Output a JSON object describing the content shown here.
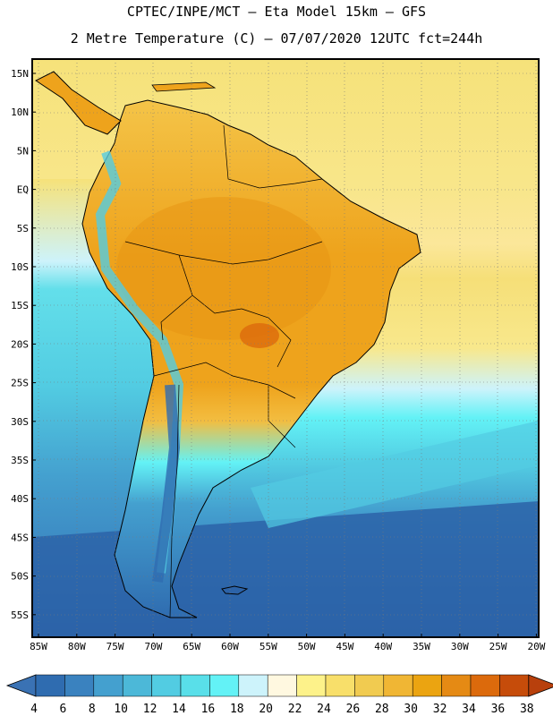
{
  "title_line1": "CPTEC/INPE/MCT –  Eta Model 15km – GFS",
  "title_line2": "2 Metre Temperature (C) – 07/07/2020 12UTC fct=244h",
  "lat_labels": [
    "15N",
    "10N",
    "5N",
    "EQ",
    "5S",
    "10S",
    "15S",
    "20S",
    "25S",
    "30S",
    "35S",
    "40S",
    "45S",
    "50S",
    "55S"
  ],
  "lon_labels": [
    "85W",
    "80W",
    "75W",
    "70W",
    "65W",
    "60W",
    "55W",
    "50W",
    "45W",
    "40W",
    "35W",
    "30W",
    "25W",
    "20W"
  ],
  "colorbar": {
    "values": [
      "4",
      "6",
      "8",
      "10",
      "12",
      "14",
      "16",
      "18",
      "20",
      "22",
      "24",
      "26",
      "28",
      "30",
      "32",
      "34",
      "36",
      "38"
    ],
    "low_color": "#3a72b4",
    "high_color": "#b8400c",
    "colors": [
      "#2f6cb0",
      "#3a82bf",
      "#44a0cf",
      "#4cb8d8",
      "#52cce2",
      "#59dfe9",
      "#63f2f6",
      "#cdf3fb",
      "#fff8e0",
      "#fdf28a",
      "#f8df6a",
      "#f1cb50",
      "#f0b634",
      "#eba411",
      "#e58a14",
      "#dc6a0c",
      "#c64c0a"
    ]
  },
  "palette": {
    "ocean_deep": "#2c63a8",
    "ocean_mid": "#3f9bcd",
    "ocean_warm": "#52cce2",
    "ocean_tropic": "#f8e37a",
    "land_hot": "#eea31c",
    "land_warm": "#f3bd40",
    "andes_cold": "#2f6cb0"
  }
}
